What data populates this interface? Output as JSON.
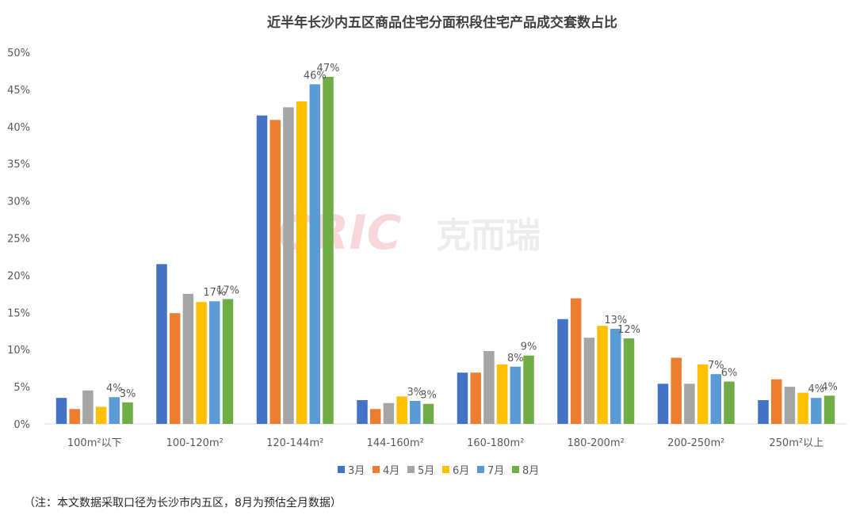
{
  "chart_data": {
    "type": "bar",
    "title": "近半年长沙内五区商品住宅分面积段住宅产品成交套数占比",
    "xlabel": "",
    "ylabel": "",
    "ylim": [
      0,
      50
    ],
    "yticks": [
      "0%",
      "5%",
      "10%",
      "15%",
      "20%",
      "25%",
      "30%",
      "35%",
      "40%",
      "45%",
      "50%"
    ],
    "grid": false,
    "legend": "bottom",
    "categories": [
      "100m²以下",
      "100-120m²",
      "120-144m²",
      "144-160m²",
      "160-180m²",
      "180-200m²",
      "200-250m²",
      "250m²以上"
    ],
    "series": [
      {
        "name": "3月",
        "color": "#4472C4",
        "values": [
          3.5,
          21.5,
          41.5,
          3.2,
          6.9,
          14.1,
          5.4,
          3.2
        ]
      },
      {
        "name": "4月",
        "color": "#ED7D31",
        "values": [
          2.0,
          14.9,
          40.9,
          2.0,
          6.9,
          16.9,
          8.9,
          6.0
        ]
      },
      {
        "name": "5月",
        "color": "#A5A5A5",
        "values": [
          4.5,
          17.5,
          42.6,
          2.8,
          9.8,
          11.6,
          5.4,
          5.0
        ]
      },
      {
        "name": "6月",
        "color": "#FFC000",
        "values": [
          2.3,
          16.4,
          43.4,
          3.7,
          8.0,
          13.2,
          8.0,
          4.2
        ]
      },
      {
        "name": "7月",
        "color": "#5B9BD5",
        "values": [
          3.6,
          16.5,
          45.7,
          3.1,
          7.7,
          12.8,
          6.7,
          3.5
        ]
      },
      {
        "name": "8月",
        "color": "#70AD47",
        "values": [
          2.9,
          16.8,
          46.7,
          2.7,
          9.2,
          11.5,
          5.7,
          3.8
        ]
      }
    ],
    "data_labels": {
      "4": [
        "4%",
        "17%",
        "46%",
        "3%",
        "8%",
        "13%",
        "7%",
        "4%"
      ],
      "5": [
        "3%",
        "17%",
        "47%",
        "3%",
        "9%",
        "12%",
        "6%",
        "4%"
      ]
    }
  },
  "watermark": {
    "logo": "CRIC",
    "text": "克而瑞"
  },
  "note": "（注：本文数据采取口径为长沙市内五区，8月为预估全月数据）"
}
